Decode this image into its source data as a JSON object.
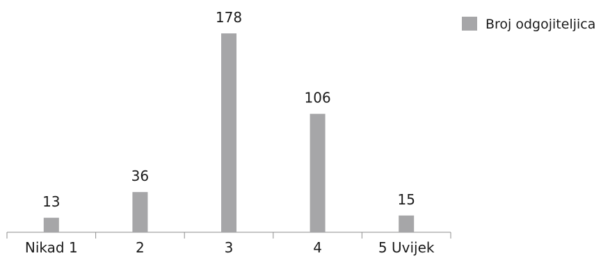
{
  "chart_data": {
    "type": "bar",
    "categories": [
      "Nikad 1",
      "2",
      "3",
      "4",
      "5 Uvijek"
    ],
    "series": [
      {
        "name": "Broj odgojiteljica",
        "values": [
          13,
          36,
          178,
          106,
          15
        ]
      }
    ],
    "data_labels": [
      "13",
      "36",
      "178",
      "106",
      "15"
    ],
    "legend": {
      "position": "top-right",
      "entries": [
        "Broj odgojiteljica"
      ]
    },
    "title": "",
    "xlabel": "",
    "ylabel": "",
    "ylim": [
      0,
      178
    ],
    "grid": false,
    "colors": {
      "bar": "#a6a6a8",
      "axis": "#8c8c8c",
      "text": "#1a1a1a"
    }
  }
}
